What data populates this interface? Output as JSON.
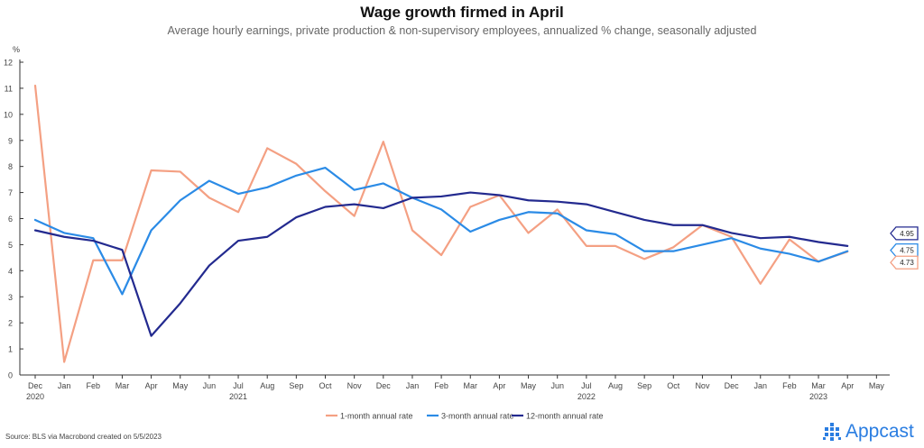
{
  "chart_data": {
    "type": "line",
    "title": "Wage growth firmed in April",
    "subtitle": "Average hourly earnings, private production & non-supervisory employees, annualized % change, seasonally adjusted",
    "ylabel": "%",
    "ylim": [
      0,
      12
    ],
    "yticks": [
      0,
      1,
      2,
      3,
      4,
      5,
      6,
      7,
      8,
      9,
      10,
      11,
      12
    ],
    "x": [
      "Dec 2020",
      "Jan 2021",
      "Feb 2021",
      "Mar 2021",
      "Apr 2021",
      "May 2021",
      "Jun 2021",
      "Jul 2021",
      "Aug 2021",
      "Sep 2021",
      "Oct 2021",
      "Nov 2021",
      "Dec 2021",
      "Jan 2022",
      "Feb 2022",
      "Mar 2022",
      "Apr 2022",
      "May 2022",
      "Jun 2022",
      "Jul 2022",
      "Aug 2022",
      "Sep 2022",
      "Oct 2022",
      "Nov 2022",
      "Dec 2022",
      "Jan 2023",
      "Feb 2023",
      "Mar 2023",
      "Apr 2023"
    ],
    "xtick_labels": [
      "Dec",
      "Jan",
      "Feb",
      "Mar",
      "Apr",
      "May",
      "Jun",
      "Jul",
      "Aug",
      "Sep",
      "Oct",
      "Nov",
      "Dec",
      "Jan",
      "Feb",
      "Mar",
      "Apr",
      "May",
      "Jun",
      "Jul",
      "Aug",
      "Sep",
      "Oct",
      "Nov",
      "Dec",
      "Jan",
      "Feb",
      "Mar",
      "Apr",
      "May"
    ],
    "year_labels": [
      {
        "label": "2020",
        "at": 0
      },
      {
        "label": "2021",
        "at": 7
      },
      {
        "label": "2022",
        "at": 19
      },
      {
        "label": "2023",
        "at": 27
      }
    ],
    "series": [
      {
        "name": "1-month annual rate",
        "color": "#f4a083",
        "values": [
          11.1,
          0.5,
          4.4,
          4.4,
          7.85,
          7.8,
          6.8,
          6.25,
          8.7,
          8.1,
          7.05,
          6.1,
          8.95,
          5.55,
          4.6,
          6.45,
          6.9,
          5.45,
          6.35,
          4.95,
          4.95,
          4.45,
          4.9,
          5.75,
          5.3,
          3.5,
          5.2,
          4.35,
          4.73
        ],
        "end_label": "4.73"
      },
      {
        "name": "3-month annual rate",
        "color": "#2b8be6",
        "values": [
          5.95,
          5.45,
          5.25,
          3.1,
          5.55,
          6.7,
          7.45,
          6.95,
          7.2,
          7.65,
          7.95,
          7.1,
          7.35,
          6.8,
          6.35,
          5.5,
          5.95,
          6.25,
          6.2,
          5.55,
          5.4,
          4.75,
          4.75,
          5.0,
          5.25,
          4.85,
          4.65,
          4.35,
          4.75
        ],
        "end_label": "4.75"
      },
      {
        "name": "12-month annual rate",
        "color": "#232a8f",
        "values": [
          5.55,
          5.3,
          5.15,
          4.8,
          1.5,
          2.75,
          4.2,
          5.15,
          5.3,
          6.05,
          6.45,
          6.55,
          6.4,
          6.8,
          6.85,
          7.0,
          6.9,
          6.7,
          6.65,
          6.55,
          6.25,
          5.95,
          5.75,
          5.75,
          5.45,
          5.25,
          5.3,
          5.1,
          4.95
        ],
        "end_label": "4.95"
      }
    ],
    "legend_position": "bottom",
    "grid": false
  },
  "footer": {
    "source": "Source: BLS via Macrobond created on 5/5/2023",
    "logo_text": "Appcast"
  }
}
